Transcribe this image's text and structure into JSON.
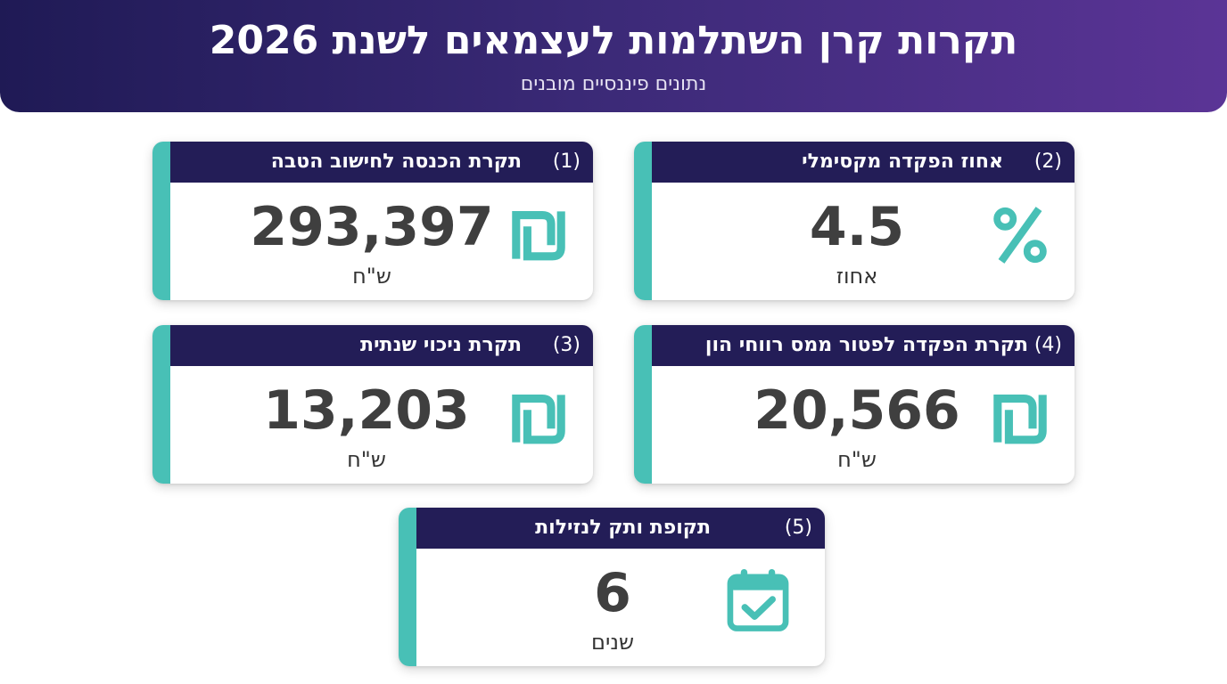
{
  "header": {
    "title": "תקרות קרן השתלמות לעצמאים לשנת 2026",
    "subtitle": "נתונים פיננסיים מובנים"
  },
  "colors": {
    "header_gradient_start": "#1f1a55",
    "header_gradient_end": "#5b3496",
    "card_header": "#231d57",
    "accent": "#48c0b6",
    "value_text": "#3f3f3f"
  },
  "cards": [
    {
      "number": "(1)",
      "title": "תקרת הכנסה לחישוב הטבה",
      "value": "293,397",
      "unit": "ש\"ח",
      "icon": "shekel-icon"
    },
    {
      "number": "(2)",
      "title": "אחוז הפקדה מקסימלי",
      "value": "4.5",
      "unit": "אחוז",
      "icon": "percent-icon"
    },
    {
      "number": "(3)",
      "title": "תקרת ניכוי שנתית",
      "value": "13,203",
      "unit": "ש\"ח",
      "icon": "shekel-icon"
    },
    {
      "number": "(4)",
      "title": "תקרת הפקדה לפטור ממס רווחי הון",
      "value": "20,566",
      "unit": "ש\"ח",
      "icon": "shekel-icon"
    },
    {
      "number": "(5)",
      "title": "תקופת ותק לנזילות",
      "value": "6",
      "unit": "שנים",
      "icon": "calendar-check-icon"
    }
  ]
}
